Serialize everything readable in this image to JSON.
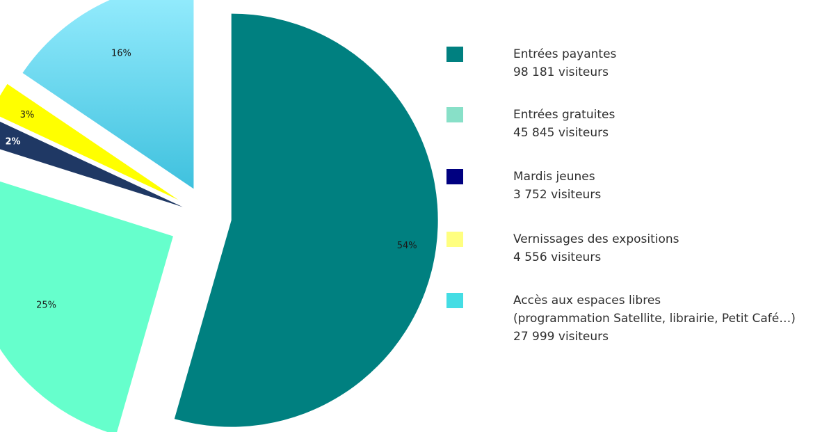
{
  "chart_data": {
    "type": "pie",
    "slices": [
      {
        "label": "Entrées payantes",
        "value": 98181,
        "percent_label": "54%",
        "color": "#008080",
        "gradient": [
          "#008080",
          "#008080"
        ],
        "label_color": "#1a1a1a"
      },
      {
        "label": "Entrées gratuites",
        "value": 45845,
        "percent_label": "25%",
        "color": "#66FFCC",
        "gradient": [
          "#66FFCC",
          "#66FFCC"
        ],
        "label_color": "#1a1a1a"
      },
      {
        "label": "Mardis jeunes",
        "value": 3752,
        "percent_label": "2%",
        "color": "#1F3864",
        "gradient": [
          "#1F3864",
          "#1F3864"
        ],
        "label_color": "#ffffff"
      },
      {
        "label": "Vernissages des expositions",
        "value": 4556,
        "percent_label": "3%",
        "color": "#FFFF00",
        "gradient": [
          "#FFFF00",
          "#FFFF00"
        ],
        "label_color": "#1a1a1a"
      },
      {
        "label": "Accès aux espaces libres",
        "value": 27999,
        "percent_label": "16%",
        "color": "#99EEFF",
        "gradient": [
          "#99EEFF",
          "#3FC1DE"
        ],
        "label_color": "#1a1a1a"
      }
    ]
  },
  "legend": [
    {
      "lines": [
        "Entrées payantes",
        "98 181 visiteurs"
      ],
      "swatch_color": "#008080"
    },
    {
      "lines": [
        "Entrées gratuites",
        "45 845 visiteurs"
      ],
      "swatch_color": "#88E0C8"
    },
    {
      "lines": [
        "Mardis jeunes",
        "3 752 visiteurs"
      ],
      "swatch_color": "#000080"
    },
    {
      "lines": [
        "Vernissages des expositions",
        "4 556 visiteurs"
      ],
      "swatch_color": "#FFFF80"
    },
    {
      "lines": [
        "Accès aux espaces libres",
        "(programmation Satellite, librairie, Petit Café…)",
        "27 999 visiteurs"
      ],
      "swatch_color": "#44DDE4"
    }
  ]
}
